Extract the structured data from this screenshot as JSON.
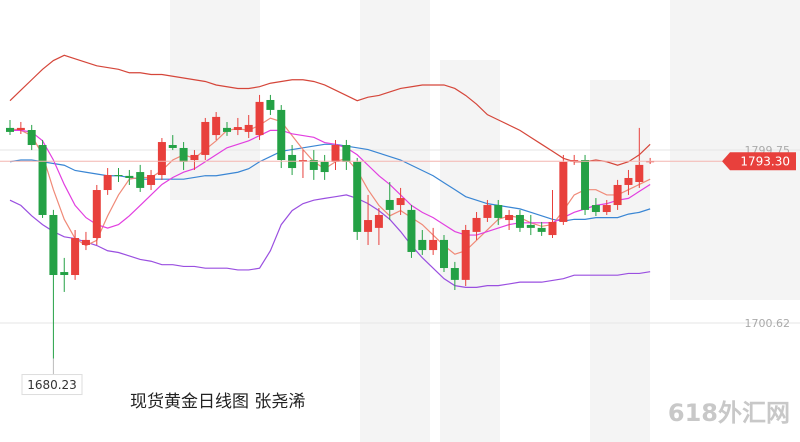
{
  "chart_data": {
    "type": "candlestick",
    "title": "现货黄金日线图  张尧浠",
    "watermark": "618外汇网",
    "ylim": [
      1632.4,
      1885.7
    ],
    "yticks": [
      1799.75,
      1700.62
    ],
    "up_color": "#e8403c",
    "down_color": "#24a145",
    "last_price": {
      "value": 1793.3,
      "label": "1793.30"
    },
    "min_label": 1680.23,
    "open": [
      1812.4,
      1811.2,
      1811.2,
      1802.6,
      1762.5,
      1729.8,
      1728.1,
      1745.3,
      1749.3,
      1776.8,
      1785.4,
      1784.9,
      1787.1,
      1779.7,
      1785.4,
      1802.6,
      1800.9,
      1794.0,
      1796.9,
      1808.3,
      1812.4,
      1811.2,
      1810.1,
      1808.3,
      1828.4,
      1822.7,
      1796.9,
      1792.9,
      1794.0,
      1792.9,
      1792.9,
      1802.6,
      1792.9,
      1752.8,
      1755.1,
      1771.1,
      1768.2,
      1765.4,
      1748.2,
      1742.4,
      1748.2,
      1732.1,
      1725.3,
      1752.8,
      1760.8,
      1768.2,
      1759.6,
      1762.5,
      1756.8,
      1755.1,
      1751.0,
      1758.5,
      1792.9,
      1794.0,
      1768.2,
      1764.2,
      1768.2,
      1779.7,
      1781.4,
      1792.9
    ],
    "high": [
      1816.9,
      1815.8,
      1814.1,
      1805.5,
      1765.4,
      1737.9,
      1753.9,
      1752.8,
      1779.7,
      1789.4,
      1789.4,
      1788.3,
      1791.2,
      1788.3,
      1806.6,
      1808.3,
      1804.3,
      1799.7,
      1818.1,
      1821.5,
      1815.8,
      1818.1,
      1819.8,
      1831.3,
      1831.3,
      1825.5,
      1802.6,
      1799.7,
      1799.7,
      1796.9,
      1805.5,
      1805.5,
      1795.2,
      1774.0,
      1766.5,
      1781.4,
      1778.0,
      1768.2,
      1753.9,
      1755.1,
      1751.0,
      1735.6,
      1756.8,
      1764.2,
      1771.1,
      1771.1,
      1765.4,
      1765.4,
      1762.5,
      1758.5,
      1776.8,
      1796.9,
      1796.9,
      1796.9,
      1772.2,
      1771.1,
      1782.6,
      1788.3,
      1812.4,
      1795.2
    ],
    "low": [
      1808.3,
      1808.9,
      1799.7,
      1760.8,
      1680.23,
      1718.4,
      1725.3,
      1742.4,
      1745.3,
      1774.0,
      1781.4,
      1779.7,
      1775.7,
      1776.8,
      1782.6,
      1799.7,
      1788.3,
      1788.3,
      1794.0,
      1805.5,
      1807.8,
      1808.3,
      1806.6,
      1805.5,
      1819.8,
      1789.4,
      1785.4,
      1783.7,
      1782.6,
      1782.6,
      1788.3,
      1788.3,
      1748.2,
      1745.3,
      1745.3,
      1759.6,
      1762.5,
      1737.9,
      1739.6,
      1739.6,
      1729.8,
      1719.5,
      1721.8,
      1748.2,
      1758.5,
      1756.8,
      1753.9,
      1752.8,
      1751.0,
      1750.5,
      1749.3,
      1756.8,
      1791.2,
      1762.5,
      1761.9,
      1762.5,
      1765.4,
      1774.0,
      1778.0,
      1791.7
    ],
    "close": [
      1810.1,
      1812.4,
      1802.6,
      1762.5,
      1728.1,
      1728.1,
      1749.3,
      1748.2,
      1776.8,
      1785.4,
      1784.9,
      1783.7,
      1778.0,
      1785.4,
      1804.3,
      1800.9,
      1792.9,
      1796.9,
      1815.8,
      1818.7,
      1810.1,
      1812.9,
      1814.1,
      1827.3,
      1822.7,
      1794.0,
      1789.4,
      1794.0,
      1788.3,
      1787.1,
      1802.6,
      1792.9,
      1752.8,
      1759.6,
      1762.5,
      1765.4,
      1772.2,
      1741.3,
      1742.4,
      1748.2,
      1732.1,
      1725.3,
      1753.9,
      1760.8,
      1768.2,
      1760.8,
      1762.5,
      1755.1,
      1755.1,
      1752.8,
      1758.5,
      1792.9,
      1794.0,
      1765.4,
      1764.2,
      1768.2,
      1779.7,
      1783.7,
      1791.2,
      1793.3
    ],
    "series": [
      {
        "color": "#d5463a",
        "values": [
          1828,
          1834,
          1840,
          1846,
          1851,
          1854,
          1852,
          1850,
          1848,
          1847,
          1846,
          1844,
          1844,
          1843,
          1843,
          1842,
          1841,
          1840,
          1839,
          1837,
          1836,
          1835,
          1835,
          1836,
          1838,
          1839,
          1840,
          1840,
          1839,
          1837,
          1834,
          1831,
          1828,
          1830,
          1831,
          1833,
          1835,
          1836,
          1837,
          1837,
          1837,
          1835,
          1831,
          1826,
          1820,
          1817,
          1814,
          1811,
          1807,
          1803,
          1799,
          1795,
          1793,
          1793,
          1794,
          1793,
          1791,
          1793,
          1797,
          1803
        ]
      },
      {
        "color": "#3a86d4",
        "values": [
          1793,
          1794,
          1794,
          1793,
          1792,
          1791,
          1788,
          1787,
          1786,
          1785,
          1785,
          1784,
          1783,
          1783,
          1783,
          1783,
          1783,
          1784,
          1785,
          1785,
          1786,
          1787,
          1789,
          1793,
          1796,
          1799,
          1800,
          1801,
          1802,
          1803,
          1803,
          1802,
          1801,
          1800,
          1798,
          1796,
          1794,
          1791,
          1788,
          1785,
          1781,
          1777,
          1773,
          1771,
          1769,
          1768,
          1767,
          1766,
          1764,
          1762,
          1760,
          1759,
          1760,
          1760,
          1761,
          1761,
          1761,
          1763,
          1764,
          1766
        ]
      },
      {
        "color": "#9a4fe0",
        "values": [
          1771,
          1768,
          1762,
          1757,
          1753,
          1750,
          1749,
          1747,
          1745,
          1742,
          1741,
          1739,
          1737,
          1736,
          1734,
          1734,
          1733,
          1733,
          1732,
          1732,
          1732,
          1731,
          1731,
          1732,
          1742,
          1757,
          1765,
          1769,
          1771,
          1772,
          1773,
          1774,
          1772,
          1769,
          1765,
          1760,
          1753,
          1745,
          1738,
          1732,
          1726,
          1722,
          1721,
          1721,
          1722,
          1722,
          1723,
          1724,
          1724,
          1724,
          1725,
          1726,
          1728,
          1728,
          1728,
          1728,
          1728,
          1729,
          1729,
          1730
        ]
      },
      {
        "color": "#f08a78",
        "values": [
          1812,
          1811,
          1808,
          1797,
          1777,
          1760,
          1749,
          1745,
          1748,
          1762,
          1774,
          1783,
          1784,
          1784,
          1788,
          1794,
          1797,
          1795,
          1800,
          1805,
          1811,
          1812,
          1811,
          1814,
          1818,
          1816,
          1808,
          1800,
          1793,
          1789,
          1793,
          1795,
          1788,
          1777,
          1768,
          1762,
          1765,
          1761,
          1757,
          1751,
          1745,
          1740,
          1742,
          1748,
          1754,
          1760,
          1762,
          1761,
          1758,
          1756,
          1757,
          1765,
          1774,
          1777,
          1777,
          1774,
          1774,
          1777,
          1780,
          1783
        ]
      },
      {
        "color": "#e23fe0",
        "values": [
          1811,
          1811,
          1810,
          1805,
          1794,
          1780,
          1768,
          1761,
          1757,
          1755,
          1757,
          1762,
          1768,
          1774,
          1780,
          1784,
          1787,
          1789,
          1793,
          1797,
          1801,
          1803,
          1805,
          1808,
          1811,
          1811,
          1809,
          1808,
          1807,
          1804,
          1803,
          1801,
          1797,
          1791,
          1785,
          1780,
          1774,
          1768,
          1764,
          1761,
          1757,
          1753,
          1751,
          1751,
          1753,
          1755,
          1757,
          1758,
          1758,
          1758,
          1758,
          1761,
          1764,
          1766,
          1768,
          1769,
          1771,
          1772,
          1776,
          1780
        ]
      }
    ]
  }
}
